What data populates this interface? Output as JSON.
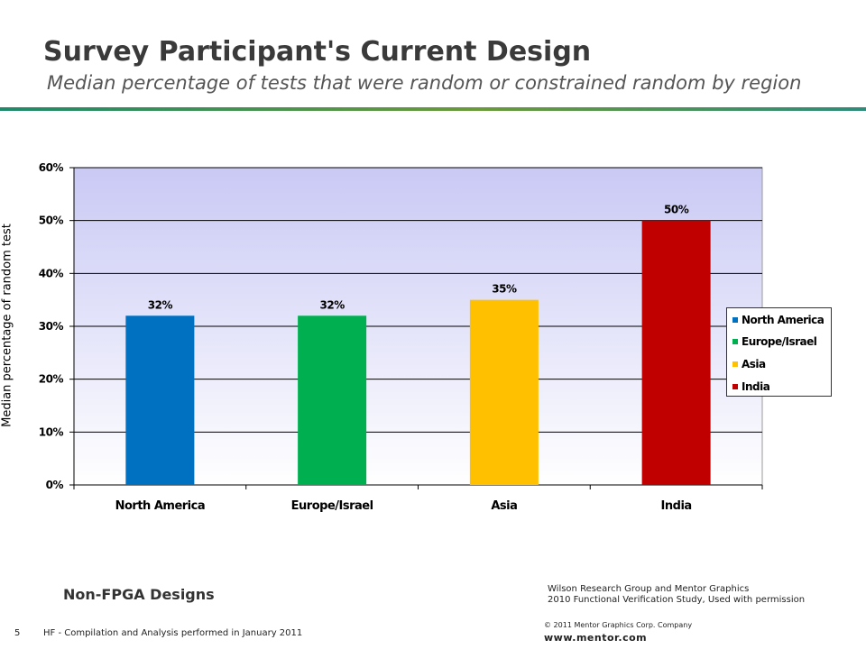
{
  "slide": {
    "title": "Survey Participant's Current Design",
    "subtitle": "Median percentage of tests that were random or constrained random by region",
    "note_left": "Non-FPGA Designs",
    "credit_line1": "Wilson Research Group and Mentor Graphics",
    "credit_line2": "2010 Functional Verification Study,  Used with permission",
    "page_number": "5",
    "footer_note": "HF - Compilation and Analysis performed in January 2011",
    "copyright": "© 2011 Mentor Graphics Corp. Company",
    "website": "www.mentor.com"
  },
  "chart_data": {
    "type": "bar",
    "title": "",
    "xlabel": "",
    "ylabel": "Median percentage of random test",
    "categories": [
      "North America",
      "Europe/Israel",
      "Asia",
      "India"
    ],
    "values": [
      32,
      32,
      35,
      50
    ],
    "value_labels": [
      "32%",
      "32%",
      "35%",
      "50%"
    ],
    "colors": [
      "#0070c0",
      "#00b050",
      "#ffc000",
      "#c00000"
    ],
    "ylim": [
      0,
      60
    ],
    "yticks": [
      0,
      10,
      20,
      30,
      40,
      50,
      60
    ],
    "ytick_labels": [
      "0%",
      "10%",
      "20%",
      "30%",
      "40%",
      "50%",
      "60%"
    ],
    "grid": true,
    "legend": {
      "position": "right",
      "entries": [
        "North America",
        "Europe/Israel",
        "Asia",
        "India"
      ]
    },
    "plot_background": "gradient lavender to white"
  }
}
